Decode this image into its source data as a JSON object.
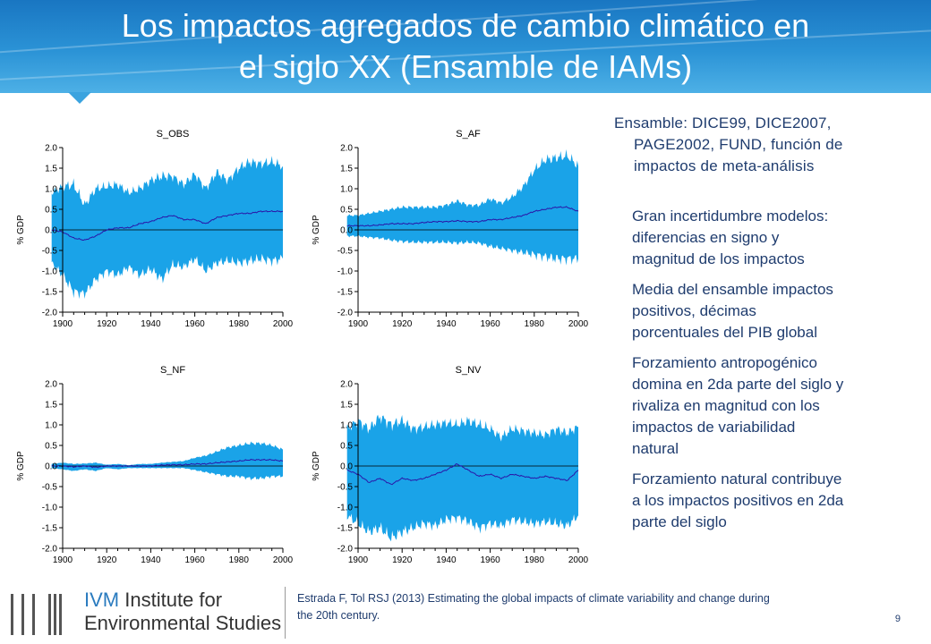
{
  "slide": {
    "title_line1": "Los impactos agregados de cambio climático en",
    "title_line2": "el siglo XX (Ensamble de IAMs)",
    "ensemble_line1": "Ensamble: DICE99, DICE2007,",
    "ensemble_line2": "PAGE2002, FUND, función de",
    "ensemble_line3": "impactos de meta-análisis",
    "bullets": [
      [
        "Gran incertidumbre modelos:",
        "diferencias en signo y",
        "magnitud de los impactos"
      ],
      [
        "Media del ensamble impactos",
        "positivos, décimas",
        "porcentuales del PIB global"
      ],
      [
        "Forzamiento antropogénico",
        "domina en 2da parte del siglo y",
        "rivaliza en magnitud con los",
        "impactos de variabilidad",
        "natural"
      ],
      [
        "Forzamiento natural contribuye",
        "a los impactos positivos en 2da",
        "parte del siglo"
      ]
    ],
    "citation_line1": "Estrada F, Tol RSJ (2013) Estimating the global impacts of climate variability and change during",
    "citation_line2": "the 20th century.",
    "page_number": "9",
    "logo_ivm": "IVM",
    "logo_line1_rest": "Institute for",
    "logo_line2": "Environmental Studies",
    "colors": {
      "header": "#1f82cc",
      "band": "#1aa3e8",
      "mean_line": "#2a16a8",
      "text": "#1f3c6e"
    }
  },
  "chart_data": [
    {
      "type": "area",
      "title": "S_OBS",
      "ylabel": "% GDP",
      "xlim": [
        1900,
        2000
      ],
      "ylim": [
        -2.0,
        2.0
      ],
      "xticks": [
        "1900",
        "1920",
        "1940",
        "1960",
        "1980",
        "2000"
      ],
      "yticks": [
        "2.0",
        "1.5",
        "1.0",
        "0.5",
        "0.0",
        "-0.5",
        "-1.0",
        "-1.5",
        "-2.0"
      ],
      "x": [
        1895,
        1900,
        1905,
        1910,
        1915,
        1920,
        1925,
        1930,
        1935,
        1940,
        1945,
        1950,
        1955,
        1960,
        1965,
        1970,
        1975,
        1980,
        1985,
        1990,
        1995,
        2000
      ],
      "upper": [
        0.9,
        1.05,
        1.1,
        0.6,
        1.0,
        1.05,
        1.1,
        0.9,
        1.0,
        1.2,
        1.3,
        1.3,
        1.1,
        1.35,
        1.0,
        1.4,
        1.2,
        1.5,
        1.65,
        1.6,
        1.65,
        1.55
      ],
      "mean": [
        0.0,
        -0.05,
        -0.2,
        -0.25,
        -0.15,
        0.0,
        0.05,
        0.05,
        0.15,
        0.2,
        0.3,
        0.35,
        0.25,
        0.25,
        0.15,
        0.3,
        0.35,
        0.4,
        0.4,
        0.45,
        0.45,
        0.45
      ],
      "lower": [
        -0.8,
        -1.1,
        -1.5,
        -1.55,
        -1.2,
        -1.0,
        -1.1,
        -0.9,
        -1.1,
        -0.95,
        -1.2,
        -0.85,
        -0.9,
        -0.7,
        -1.0,
        -0.8,
        -0.75,
        -0.8,
        -0.75,
        -0.7,
        -0.75,
        -0.7
      ]
    },
    {
      "type": "area",
      "title": "S_AF",
      "ylabel": "% GDP",
      "xlim": [
        1900,
        2000
      ],
      "ylim": [
        -2.0,
        2.0
      ],
      "xticks": [
        "1900",
        "1920",
        "1940",
        "1960",
        "1980",
        "2000"
      ],
      "yticks": [
        "2.0",
        "1.5",
        "1.0",
        "0.5",
        "0.0",
        "-0.5",
        "-1.0",
        "-1.5",
        "-2.0"
      ],
      "x": [
        1895,
        1900,
        1905,
        1910,
        1915,
        1920,
        1925,
        1930,
        1935,
        1940,
        1945,
        1950,
        1955,
        1960,
        1965,
        1970,
        1975,
        1980,
        1985,
        1990,
        1995,
        2000
      ],
      "upper": [
        0.35,
        0.35,
        0.4,
        0.45,
        0.5,
        0.55,
        0.55,
        0.55,
        0.55,
        0.6,
        0.7,
        0.6,
        0.6,
        0.75,
        0.65,
        0.8,
        1.05,
        1.45,
        1.7,
        1.75,
        1.8,
        1.55
      ],
      "mean": [
        0.1,
        0.1,
        0.1,
        0.12,
        0.15,
        0.15,
        0.15,
        0.18,
        0.2,
        0.2,
        0.22,
        0.2,
        0.2,
        0.25,
        0.25,
        0.3,
        0.35,
        0.45,
        0.5,
        0.55,
        0.55,
        0.45
      ],
      "lower": [
        -0.15,
        -0.15,
        -0.18,
        -0.2,
        -0.25,
        -0.28,
        -0.3,
        -0.3,
        -0.3,
        -0.3,
        -0.32,
        -0.3,
        -0.32,
        -0.4,
        -0.45,
        -0.5,
        -0.55,
        -0.6,
        -0.65,
        -0.7,
        -0.7,
        -0.7
      ]
    },
    {
      "type": "area",
      "title": "S_NF",
      "ylabel": "% GDP",
      "xlim": [
        1900,
        2000
      ],
      "ylim": [
        -2.0,
        2.0
      ],
      "xticks": [
        "1900",
        "1920",
        "1940",
        "1960",
        "1980",
        "2000"
      ],
      "yticks": [
        "2.0",
        "1.5",
        "1.0",
        "0.5",
        "0.0",
        "-0.5",
        "-1.0",
        "-1.5",
        "-2.0"
      ],
      "x": [
        1895,
        1900,
        1905,
        1910,
        1915,
        1920,
        1925,
        1930,
        1935,
        1940,
        1945,
        1950,
        1955,
        1960,
        1965,
        1970,
        1975,
        1980,
        1985,
        1990,
        1995,
        2000
      ],
      "upper": [
        0.05,
        0.08,
        0.05,
        0.06,
        0.08,
        0.03,
        0.05,
        0.02,
        0.05,
        0.05,
        0.08,
        0.1,
        0.12,
        0.2,
        0.25,
        0.35,
        0.45,
        0.5,
        0.55,
        0.55,
        0.5,
        0.4
      ],
      "mean": [
        0.0,
        0.0,
        -0.02,
        0.0,
        -0.03,
        0.0,
        0.0,
        0.0,
        0.0,
        0.0,
        0.02,
        0.03,
        0.03,
        0.05,
        0.05,
        0.08,
        0.1,
        0.12,
        0.15,
        0.15,
        0.15,
        0.12
      ],
      "lower": [
        -0.05,
        -0.08,
        -0.12,
        -0.08,
        -0.12,
        -0.05,
        -0.08,
        -0.05,
        -0.05,
        -0.05,
        -0.05,
        -0.05,
        -0.05,
        -0.1,
        -0.15,
        -0.2,
        -0.25,
        -0.25,
        -0.3,
        -0.3,
        -0.25,
        -0.25
      ]
    },
    {
      "type": "area",
      "title": "S_NV",
      "ylabel": "% GDP",
      "xlim": [
        1900,
        2000
      ],
      "ylim": [
        -2.0,
        2.0
      ],
      "xticks": [
        "1900",
        "1920",
        "1940",
        "1960",
        "1980",
        "2000"
      ],
      "yticks": [
        "2.0",
        "1.5",
        "1.0",
        "0.5",
        "0.0",
        "-0.5",
        "-1.0",
        "-1.5",
        "-2.0"
      ],
      "x": [
        1895,
        1900,
        1905,
        1910,
        1915,
        1920,
        1925,
        1930,
        1935,
        1940,
        1945,
        1950,
        1955,
        1960,
        1965,
        1970,
        1975,
        1980,
        1985,
        1990,
        1995,
        2000
      ],
      "upper": [
        0.9,
        1.1,
        0.9,
        1.2,
        1.0,
        1.1,
        0.9,
        0.95,
        1.0,
        1.05,
        1.0,
        1.1,
        1.0,
        0.9,
        0.7,
        0.9,
        0.85,
        0.8,
        0.75,
        0.9,
        0.8,
        0.95
      ],
      "mean": [
        -0.1,
        -0.2,
        -0.4,
        -0.3,
        -0.45,
        -0.3,
        -0.35,
        -0.3,
        -0.2,
        -0.1,
        0.05,
        -0.1,
        -0.25,
        -0.2,
        -0.3,
        -0.2,
        -0.25,
        -0.3,
        -0.25,
        -0.3,
        -0.35,
        -0.1
      ],
      "lower": [
        -1.2,
        -1.4,
        -1.6,
        -1.5,
        -1.75,
        -1.6,
        -1.5,
        -1.4,
        -1.45,
        -1.3,
        -1.25,
        -1.35,
        -1.5,
        -1.4,
        -1.45,
        -1.3,
        -1.35,
        -1.4,
        -1.35,
        -1.4,
        -1.45,
        -1.2
      ]
    }
  ]
}
